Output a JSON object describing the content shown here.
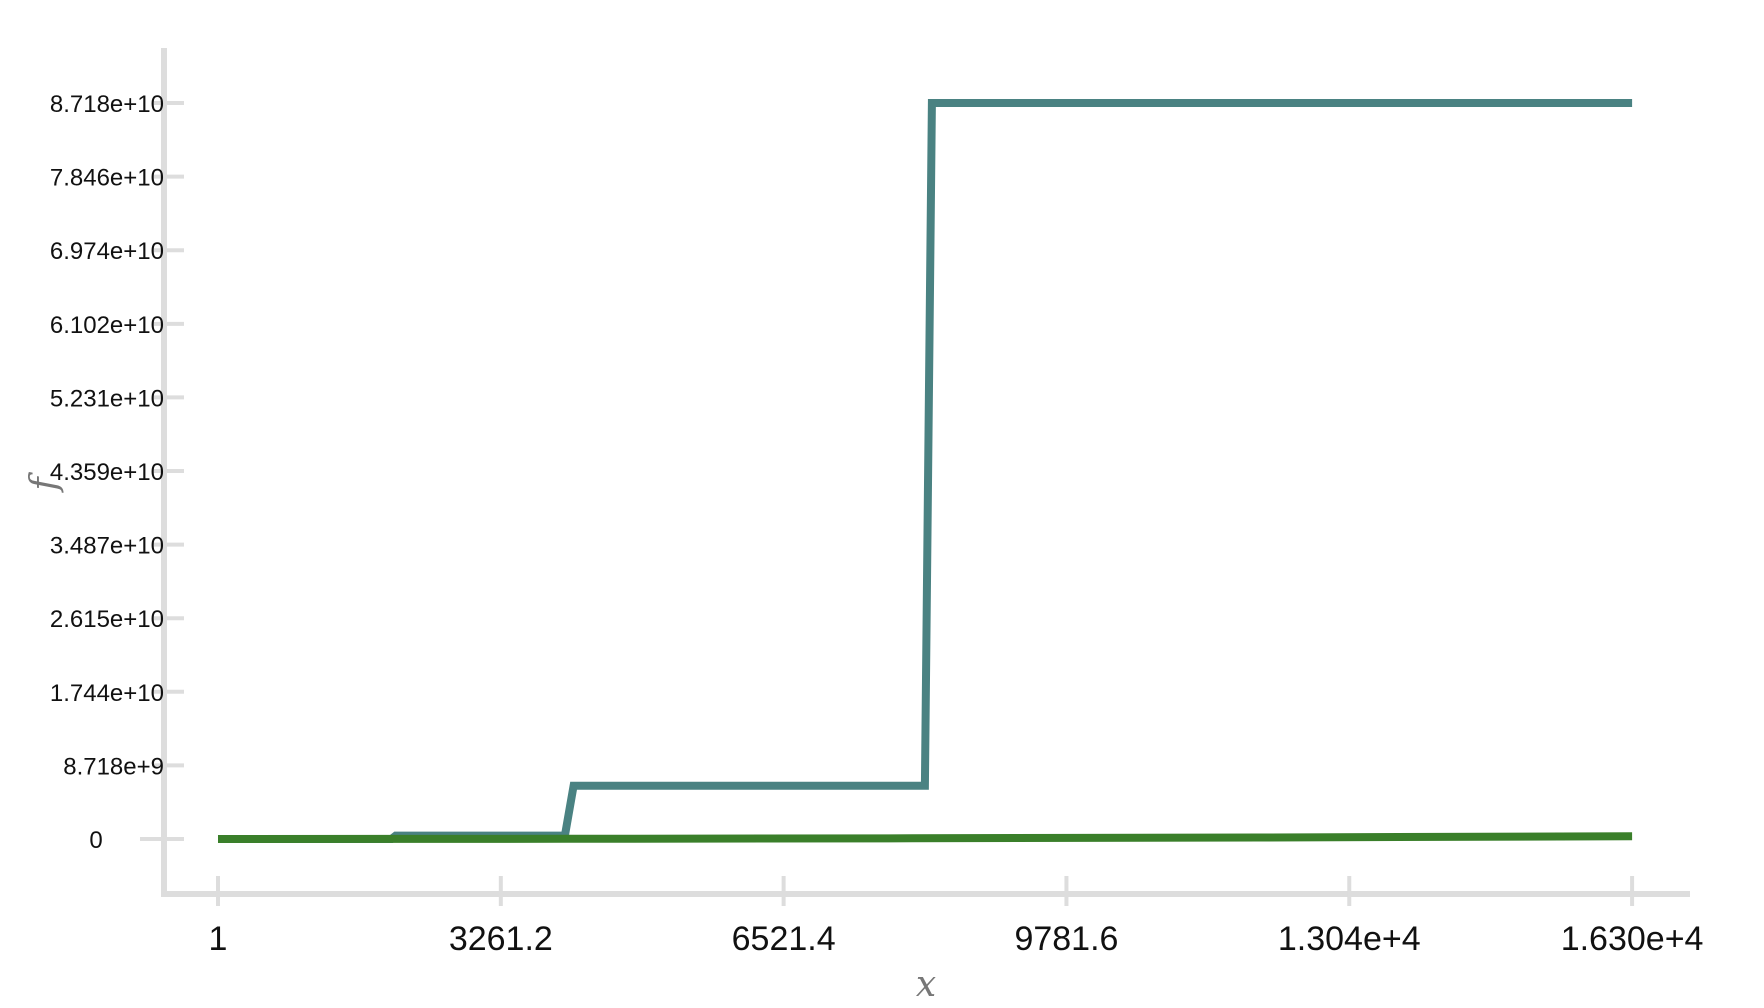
{
  "chart_data": {
    "type": "line",
    "xlabel": "x",
    "ylabel": "f",
    "xlim": [
      1,
      16301
    ],
    "ylim": [
      0,
      87180000000
    ],
    "x_ticks": [
      "1",
      "3261.2",
      "6521.4",
      "9781.6",
      "1.304e+4",
      "1.630e+4"
    ],
    "x_tick_values": [
      1,
      3261.2,
      6521.4,
      9781.6,
      13041.8,
      16302
    ],
    "y_ticks": [
      "0",
      "8.718e+9",
      "1.744e+10",
      "2.615e+10",
      "3.487e+10",
      "4.359e+10",
      "5.231e+10",
      "6.102e+10",
      "6.974e+10",
      "7.846e+10",
      "8.718e+10"
    ],
    "y_tick_values": [
      0,
      8718000000,
      17440000000,
      26150000000,
      34870000000,
      43590000000,
      52310000000,
      61020000000,
      69740000000,
      78460000000,
      87180000000
    ],
    "grid": false,
    "series": [
      {
        "color": "#4a8282",
        "x": [
          1,
          2000,
          2050,
          4000,
          4100,
          8150,
          8230,
          16302
        ],
        "y": [
          0,
          0,
          400000000,
          400000000,
          6300000000,
          6300000000,
          87180000000,
          87180000000
        ]
      },
      {
        "color": "#3a7f2a",
        "x": [
          1,
          4000,
          8000,
          12000,
          16302
        ],
        "y": [
          0,
          20000000,
          80000000,
          180000000,
          320000000
        ]
      }
    ]
  }
}
